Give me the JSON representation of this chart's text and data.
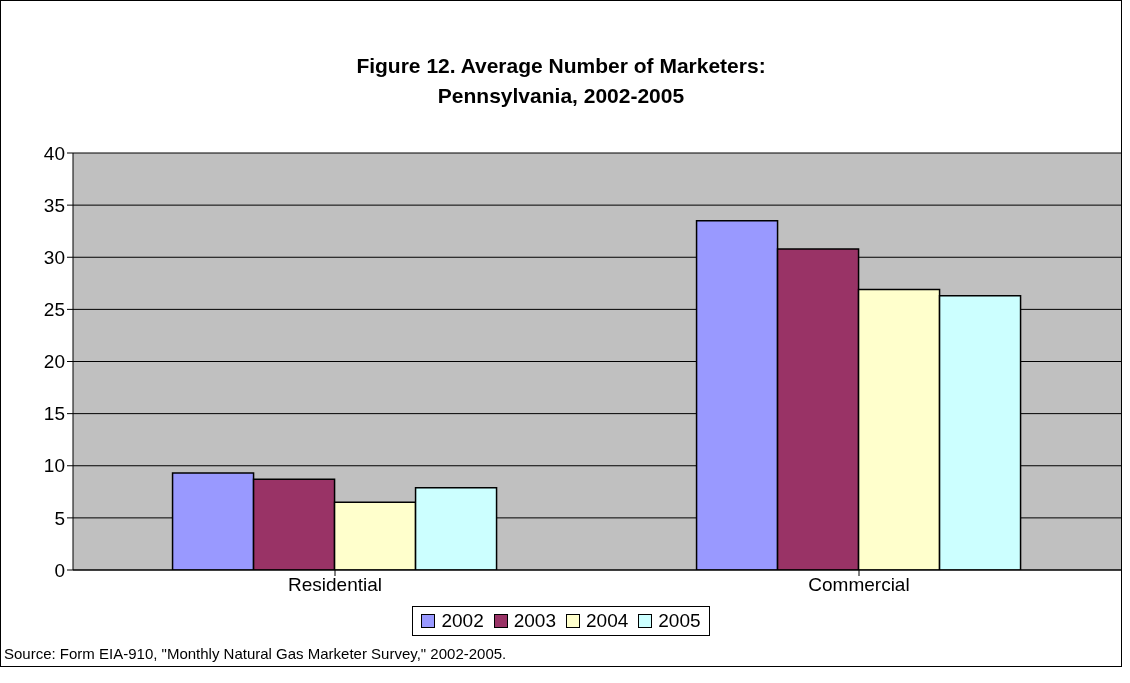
{
  "chart_data": {
    "type": "bar",
    "title": "Figure 12. Average Number of Marketers:\nPennsylvania, 2002-2005",
    "categories": [
      "Residential",
      "Commercial"
    ],
    "series": [
      {
        "name": "2002",
        "color": "#9999ff",
        "values": [
          9.3,
          33.5
        ]
      },
      {
        "name": "2003",
        "color": "#993366",
        "values": [
          8.7,
          30.8
        ]
      },
      {
        "name": "2004",
        "color": "#ffffcc",
        "values": [
          6.5,
          26.9
        ]
      },
      {
        "name": "2005",
        "color": "#ccffff",
        "values": [
          7.9,
          26.3
        ]
      }
    ],
    "ylim": [
      0,
      40
    ],
    "yticks": [
      0,
      5,
      10,
      15,
      20,
      25,
      30,
      35,
      40
    ],
    "grid": "y",
    "legend": "bottom",
    "annotations": [
      "Source: Form EIA-910, \"Monthly Natural Gas Marketer Survey,\" 2002-2005."
    ]
  }
}
